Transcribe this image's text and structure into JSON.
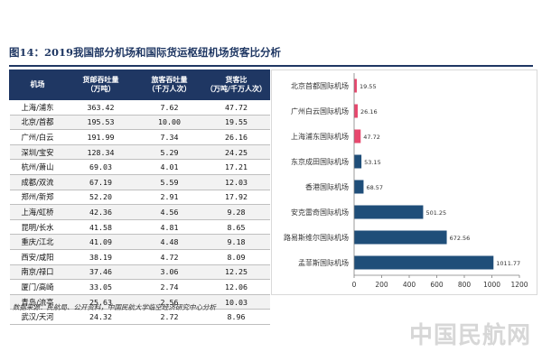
{
  "title": "图14：2019我国部分机场和国际货运枢纽机场货客比分析",
  "table": {
    "headers": [
      "机场",
      "货邮吞吐量\n（万吨）",
      "旅客吞吐量\n（千万人次）",
      "货客比\n（万吨/千万人次）"
    ],
    "rows": [
      [
        "上海/浦东",
        "363.42",
        "7.62",
        "47.72"
      ],
      [
        "北京/首都",
        "195.53",
        "10.00",
        "19.55"
      ],
      [
        "广州/白云",
        "191.99",
        "7.34",
        "26.16"
      ],
      [
        "深圳/宝安",
        "128.34",
        "5.29",
        "24.25"
      ],
      [
        "杭州/萧山",
        "69.03",
        "4.01",
        "17.21"
      ],
      [
        "成都/双流",
        "67.19",
        "5.59",
        "12.03"
      ],
      [
        "郑州/新郑",
        "52.20",
        "2.91",
        "17.92"
      ],
      [
        "上海/虹桥",
        "42.36",
        "4.56",
        "9.28"
      ],
      [
        "昆明/长水",
        "41.58",
        "4.81",
        "8.65"
      ],
      [
        "重庆/江北",
        "41.09",
        "4.48",
        "9.18"
      ],
      [
        "西安/咸阳",
        "38.19",
        "4.72",
        "8.09"
      ],
      [
        "南京/禄口",
        "37.46",
        "3.06",
        "12.25"
      ],
      [
        "厦门/高崎",
        "33.05",
        "2.74",
        "12.06"
      ],
      [
        "青岛/流亭",
        "25.63",
        "2.56",
        "10.03"
      ],
      [
        "武汉/天河",
        "24.32",
        "2.72",
        "8.96"
      ]
    ]
  },
  "chart_data": {
    "type": "bar",
    "orientation": "horizontal",
    "categories": [
      "北京首都国际机场",
      "广州白云国际机场",
      "上海浦东国际机场",
      "东京成田国际机场",
      "香港国际机场",
      "安克雷奇国际机场",
      "路易斯维尔国际机场",
      "孟菲斯国际机场"
    ],
    "values": [
      19.55,
      26.16,
      47.72,
      53.15,
      68.57,
      501.25,
      672.56,
      1011.77
    ],
    "value_labels": [
      "19.55",
      "26.16",
      "47.72",
      "53.15",
      "68.57",
      "501.25",
      "672.56",
      "1011.77"
    ],
    "bar_colors": [
      "#e8486e",
      "#e8486e",
      "#e8486e",
      "#1f4e79",
      "#1f4e79",
      "#1f4e79",
      "#1f4e79",
      "#1f4e79"
    ],
    "xlim": [
      0,
      1200
    ],
    "xticks": [
      "0",
      "200",
      "400",
      "600",
      "800",
      "1000",
      "1200"
    ],
    "xlabel": "",
    "ylabel": "",
    "grid": false
  },
  "source": "数据来源：民航局、公开资料，中国民航大学临空经济研究中心分析",
  "watermark": "中国民航网"
}
